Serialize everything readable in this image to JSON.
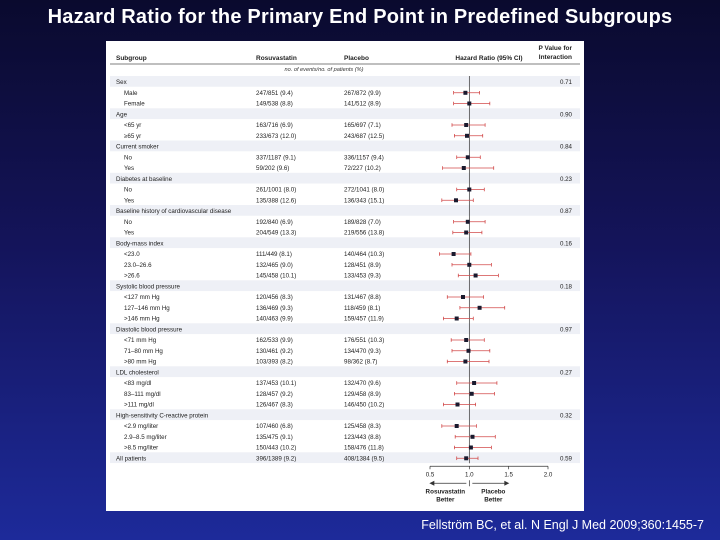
{
  "title": "Hazard Ratio for the Primary End Point in Predefined Subgroups",
  "citation": "Fellström BC, et al. N Engl J Med 2009;360:1455-7",
  "colors": {
    "shade": "#eef0f6",
    "marker": "#1a1a2e",
    "whisker": "#d24a4a"
  },
  "chart_data": {
    "type": "table",
    "subtitle": "Hazard Ratio (95% CI)",
    "columns": [
      "Subgroup",
      "Rosuvastatin",
      "Placebo",
      "Hazard Ratio (95% CI)",
      "P Value for Interaction"
    ],
    "units_note": "no. of events/no. of patients (%)",
    "x_ticks": [
      0.5,
      1.0,
      1.5,
      2.0
    ],
    "x_tick_labels": [
      "0.5",
      "1.0",
      "1.5",
      "2.0"
    ],
    "xlim": [
      0.5,
      2.0
    ],
    "footer_left": [
      "Rosuvastatin",
      "Better"
    ],
    "footer_right": [
      "Placebo",
      "Better"
    ],
    "rows": [
      {
        "label": "Sex",
        "indent": false,
        "p": "0.71"
      },
      {
        "label": "Male",
        "indent": true,
        "rosu": "247/851 (9.4)",
        "plac": "267/872 (9.9)",
        "hr": 0.95,
        "lo": 0.8,
        "hi": 1.13
      },
      {
        "label": "Female",
        "indent": true,
        "rosu": "149/538 (8.8)",
        "plac": "141/512 (8.9)",
        "hr": 1.0,
        "lo": 0.8,
        "hi": 1.26
      },
      {
        "label": "Age",
        "indent": false,
        "p": "0.90"
      },
      {
        "label": "<65 yr",
        "indent": true,
        "rosu": "163/716 (6.9)",
        "plac": "165/697 (7.1)",
        "hr": 0.96,
        "lo": 0.78,
        "hi": 1.2
      },
      {
        "label": "≥65 yr",
        "indent": true,
        "rosu": "233/673 (12.0)",
        "plac": "243/687 (12.5)",
        "hr": 0.97,
        "lo": 0.81,
        "hi": 1.17
      },
      {
        "label": "Current smoker",
        "indent": false,
        "p": "0.84"
      },
      {
        "label": "No",
        "indent": true,
        "rosu": "337/1187 (9.1)",
        "plac": "336/1157 (9.4)",
        "hr": 0.98,
        "lo": 0.84,
        "hi": 1.14
      },
      {
        "label": "Yes",
        "indent": true,
        "rosu": "59/202 (9.6)",
        "plac": "72/227 (10.2)",
        "hr": 0.93,
        "lo": 0.66,
        "hi": 1.31
      },
      {
        "label": "Diabetes at baseline",
        "indent": false,
        "p": "0.23"
      },
      {
        "label": "No",
        "indent": true,
        "rosu": "261/1001 (8.0)",
        "plac": "272/1041 (8.0)",
        "hr": 1.0,
        "lo": 0.84,
        "hi": 1.19
      },
      {
        "label": "Yes",
        "indent": true,
        "rosu": "135/388 (12.6)",
        "plac": "136/343 (15.1)",
        "hr": 0.83,
        "lo": 0.65,
        "hi": 1.05
      },
      {
        "label": "Baseline history of cardiovascular disease",
        "indent": false,
        "p": "0.87"
      },
      {
        "label": "No",
        "indent": true,
        "rosu": "192/840 (6.9)",
        "plac": "189/828 (7.0)",
        "hr": 0.98,
        "lo": 0.8,
        "hi": 1.2
      },
      {
        "label": "Yes",
        "indent": true,
        "rosu": "204/549 (13.3)",
        "plac": "219/556 (13.8)",
        "hr": 0.96,
        "lo": 0.79,
        "hi": 1.16
      },
      {
        "label": "Body-mass index",
        "indent": false,
        "p": "0.16"
      },
      {
        "label": "<23.0",
        "indent": true,
        "rosu": "111/449 (8.1)",
        "plac": "140/464 (10.3)",
        "hr": 0.8,
        "lo": 0.62,
        "hi": 1.02
      },
      {
        "label": "23.0–26.6",
        "indent": true,
        "rosu": "132/465 (9.0)",
        "plac": "128/451 (8.9)",
        "hr": 1.0,
        "lo": 0.78,
        "hi": 1.28
      },
      {
        "label": ">26.6",
        "indent": true,
        "rosu": "145/458 (10.1)",
        "plac": "133/453 (9.3)",
        "hr": 1.08,
        "lo": 0.86,
        "hi": 1.37
      },
      {
        "label": "Systolic blood pressure",
        "indent": false,
        "p": "0.18"
      },
      {
        "label": "<127 mm Hg",
        "indent": true,
        "rosu": "120/456 (8.3)",
        "plac": "131/467 (8.8)",
        "hr": 0.92,
        "lo": 0.72,
        "hi": 1.18
      },
      {
        "label": "127–146 mm Hg",
        "indent": true,
        "rosu": "136/469 (9.3)",
        "plac": "118/459 (8.1)",
        "hr": 1.13,
        "lo": 0.88,
        "hi": 1.45
      },
      {
        "label": ">146 mm Hg",
        "indent": true,
        "rosu": "140/463 (9.9)",
        "plac": "159/457 (11.9)",
        "hr": 0.84,
        "lo": 0.67,
        "hi": 1.05
      },
      {
        "label": "Diastolic blood pressure",
        "indent": false,
        "p": "0.97"
      },
      {
        "label": "<71 mm Hg",
        "indent": true,
        "rosu": "162/533 (9.9)",
        "plac": "176/551 (10.3)",
        "hr": 0.96,
        "lo": 0.77,
        "hi": 1.19
      },
      {
        "label": "71–80 mm Hg",
        "indent": true,
        "rosu": "130/461 (9.2)",
        "plac": "134/470 (9.3)",
        "hr": 0.99,
        "lo": 0.78,
        "hi": 1.26
      },
      {
        "label": ">80 mm Hg",
        "indent": true,
        "rosu": "103/393 (8.2)",
        "plac": "98/362 (8.7)",
        "hr": 0.95,
        "lo": 0.72,
        "hi": 1.25
      },
      {
        "label": "LDL cholesterol",
        "indent": false,
        "p": "0.27"
      },
      {
        "label": "<83 mg/dl",
        "indent": true,
        "rosu": "137/453 (10.1)",
        "plac": "132/470 (9.6)",
        "hr": 1.06,
        "lo": 0.84,
        "hi": 1.35
      },
      {
        "label": "83–111 mg/dl",
        "indent": true,
        "rosu": "128/457 (9.2)",
        "plac": "129/458 (8.9)",
        "hr": 1.03,
        "lo": 0.81,
        "hi": 1.32
      },
      {
        "label": ">111 mg/dl",
        "indent": true,
        "rosu": "126/467 (8.3)",
        "plac": "146/450 (10.2)",
        "hr": 0.85,
        "lo": 0.67,
        "hi": 1.08
      },
      {
        "label": "High-sensitivity C-reactive protein",
        "indent": false,
        "p": "0.32"
      },
      {
        "label": "<2.9 mg/liter",
        "indent": true,
        "rosu": "107/460 (6.8)",
        "plac": "125/458 (8.3)",
        "hr": 0.84,
        "lo": 0.65,
        "hi": 1.09
      },
      {
        "label": "2.9–8.5 mg/liter",
        "indent": true,
        "rosu": "135/475 (9.1)",
        "plac": "123/443 (8.8)",
        "hr": 1.04,
        "lo": 0.82,
        "hi": 1.33
      },
      {
        "label": ">8.5 mg/liter",
        "indent": true,
        "rosu": "150/443 (10.2)",
        "plac": "158/476 (11.8)",
        "hr": 1.02,
        "lo": 0.81,
        "hi": 1.28
      },
      {
        "label": "All patients",
        "indent": false,
        "rosu": "396/1389 (9.2)",
        "plac": "408/1384 (9.5)",
        "hr": 0.96,
        "lo": 0.84,
        "hi": 1.11,
        "p": "0.59"
      }
    ]
  }
}
